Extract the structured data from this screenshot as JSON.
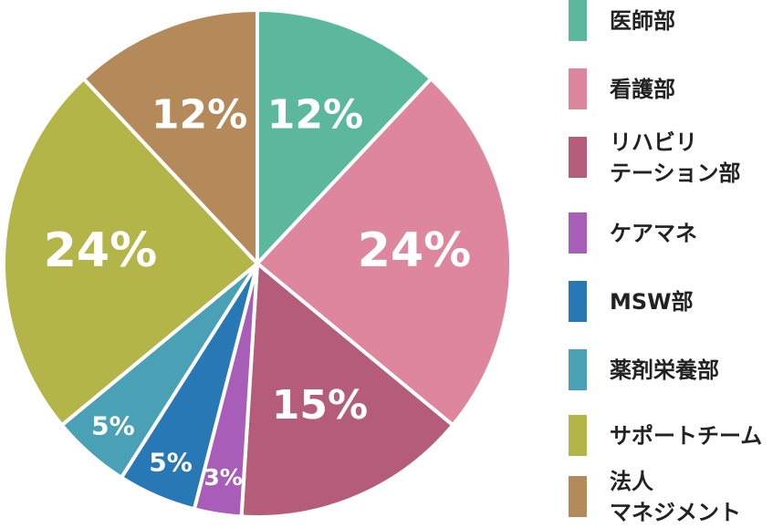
{
  "chart_data": {
    "type": "pie",
    "categories": [
      "医師部",
      "看護部",
      "リハビリ\nテーション部",
      "ケアマネ",
      "MSW部",
      "薬剤栄養部",
      "サポートチーム",
      "法人\nマネジメント"
    ],
    "values": [
      12,
      24,
      15,
      3,
      5,
      5,
      24,
      12
    ],
    "value_labels": [
      "12%",
      "24%",
      "15%",
      "3%",
      "5%",
      "5%",
      "24%",
      "12%"
    ],
    "colors": [
      "#5bb89d",
      "#dd869e",
      "#b45c7a",
      "#a85db8",
      "#2878b5",
      "#4aa0b5",
      "#b4b548",
      "#b58a5a"
    ],
    "legend": "right"
  }
}
